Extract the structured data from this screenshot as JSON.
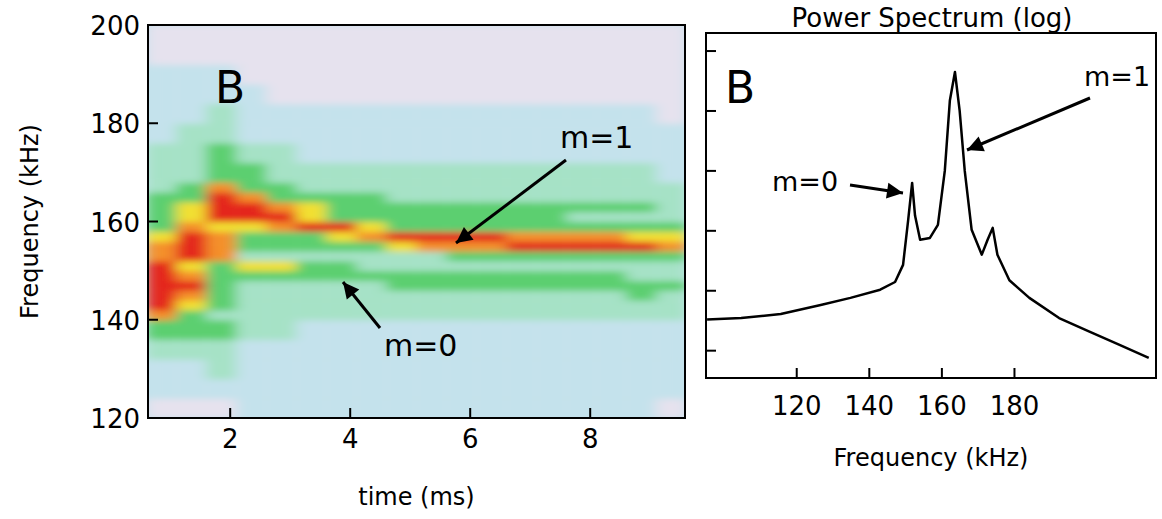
{
  "chart_data": [
    {
      "type": "heatmap",
      "panel_label": "B",
      "xlabel": "time (ms)",
      "ylabel": "Frequency (kHz)",
      "annotations": [
        "m=1",
        "m=0"
      ],
      "xlim": [
        0.63,
        9.58
      ],
      "ylim": [
        120,
        200
      ],
      "xticks": [
        2,
        4,
        6,
        8
      ],
      "yticks": [
        120,
        140,
        160,
        180,
        200
      ],
      "x_bins": [
        0.6,
        1.1,
        1.6,
        2.1,
        2.6,
        3.1,
        3.6,
        4.1,
        4.6,
        5.1,
        5.6,
        6.1,
        6.6,
        7.1,
        7.6,
        8.1,
        8.6,
        9.1,
        9.6
      ],
      "y_bins": [
        120,
        124,
        128,
        132,
        136,
        140,
        142,
        144,
        146,
        148,
        150,
        152,
        154,
        156,
        158,
        160,
        162,
        164,
        166,
        168,
        172,
        176,
        180,
        184,
        188,
        192,
        196,
        200
      ],
      "z": [
        [
          0,
          0,
          0,
          1,
          1,
          1,
          1,
          1,
          1,
          1,
          1,
          1,
          1,
          1,
          1,
          1,
          1,
          0
        ],
        [
          1,
          1,
          1,
          1,
          1,
          1,
          1,
          1,
          1,
          1,
          1,
          1,
          1,
          1,
          1,
          1,
          1,
          1
        ],
        [
          1,
          1,
          2,
          1,
          1,
          1,
          1,
          1,
          1,
          1,
          1,
          1,
          1,
          1,
          1,
          1,
          1,
          1
        ],
        [
          2,
          2,
          2,
          1,
          1,
          1,
          1,
          1,
          1,
          1,
          1,
          1,
          1,
          1,
          1,
          1,
          1,
          1
        ],
        [
          3,
          3,
          3,
          2,
          2,
          1,
          1,
          1,
          1,
          1,
          1,
          1,
          1,
          1,
          1,
          1,
          1,
          1
        ],
        [
          5,
          3,
          2,
          2,
          2,
          2,
          2,
          2,
          2,
          2,
          2,
          2,
          2,
          2,
          2,
          2,
          2,
          2
        ],
        [
          6,
          4,
          3,
          2,
          2,
          2,
          2,
          2,
          2,
          2,
          2,
          2,
          2,
          2,
          2,
          2,
          2,
          2
        ],
        [
          6,
          5,
          3,
          2,
          2,
          2,
          2,
          2,
          2,
          2,
          2,
          2,
          2,
          2,
          2,
          2,
          3,
          2
        ],
        [
          6,
          6,
          3,
          2,
          2,
          2,
          2,
          2,
          3,
          3,
          3,
          3,
          3,
          3,
          3,
          3,
          3,
          3
        ],
        [
          6,
          5,
          3,
          3,
          3,
          3,
          3,
          3,
          3,
          3,
          3,
          3,
          3,
          3,
          3,
          3,
          2,
          2
        ],
        [
          6,
          4,
          3,
          4,
          4,
          3,
          3,
          2,
          2,
          2,
          2,
          2,
          2,
          2,
          2,
          2,
          2,
          2
        ],
        [
          5,
          6,
          5,
          2,
          2,
          2,
          2,
          2,
          2,
          2,
          3,
          3,
          3,
          3,
          3,
          3,
          3,
          3
        ],
        [
          5,
          6,
          5,
          3,
          3,
          3,
          3,
          3,
          4,
          5,
          5,
          5,
          6,
          6,
          6,
          6,
          6,
          5
        ],
        [
          4,
          6,
          5,
          3,
          3,
          3,
          4,
          5,
          6,
          6,
          6,
          6,
          5,
          5,
          5,
          5,
          4,
          4
        ],
        [
          3,
          5,
          4,
          4,
          5,
          6,
          6,
          4,
          3,
          3,
          3,
          3,
          3,
          3,
          3,
          3,
          3,
          3
        ],
        [
          3,
          4,
          6,
          6,
          6,
          4,
          3,
          3,
          3,
          3,
          3,
          3,
          3,
          3,
          2,
          2,
          2,
          2
        ],
        [
          3,
          4,
          6,
          6,
          5,
          4,
          3,
          3,
          3,
          3,
          3,
          3,
          3,
          3,
          3,
          3,
          3,
          2
        ],
        [
          3,
          3,
          6,
          5,
          3,
          3,
          3,
          3,
          2,
          2,
          2,
          2,
          2,
          2,
          2,
          2,
          2,
          2
        ],
        [
          2,
          3,
          5,
          3,
          3,
          2,
          2,
          2,
          2,
          2,
          2,
          2,
          2,
          2,
          2,
          2,
          2,
          2
        ],
        [
          2,
          2,
          3,
          3,
          2,
          2,
          2,
          2,
          2,
          2,
          2,
          2,
          2,
          2,
          2,
          2,
          2,
          1
        ],
        [
          2,
          2,
          3,
          2,
          2,
          1,
          1,
          1,
          1,
          1,
          1,
          1,
          1,
          1,
          1,
          1,
          1,
          1
        ],
        [
          1,
          2,
          2,
          1,
          1,
          1,
          1,
          1,
          1,
          1,
          1,
          1,
          1,
          1,
          1,
          1,
          1,
          1
        ],
        [
          1,
          1,
          2,
          1,
          1,
          1,
          1,
          1,
          1,
          1,
          1,
          1,
          1,
          1,
          1,
          1,
          1,
          0
        ],
        [
          1,
          1,
          1,
          1,
          0,
          0,
          0,
          0,
          0,
          0,
          0,
          0,
          0,
          0,
          0,
          0,
          0,
          0
        ],
        [
          1,
          1,
          1,
          0,
          0,
          0,
          0,
          0,
          0,
          0,
          0,
          0,
          0,
          0,
          0,
          0,
          0,
          0
        ],
        [
          0,
          0,
          0,
          0,
          0,
          0,
          0,
          0,
          0,
          0,
          0,
          0,
          0,
          0,
          0,
          0,
          0,
          0
        ],
        [
          0,
          0,
          0,
          0,
          0,
          0,
          0,
          0,
          0,
          0,
          0,
          0,
          0,
          0,
          0,
          0,
          0,
          0
        ]
      ]
    },
    {
      "type": "line",
      "title": "Power Spectrum (log)",
      "panel_label": "B",
      "xlabel": "Frequency (kHz)",
      "annotations": [
        "m=0",
        "m=1"
      ],
      "log": "y",
      "tick_labels": "x",
      "color": "#000000",
      "xlim": [
        95,
        219
      ],
      "ylim": [
        0.35,
        200000
      ],
      "xticks": [
        120,
        140,
        160,
        180
      ],
      "yticks": [
        1,
        10,
        100,
        1000,
        10000,
        100000
      ],
      "x": [
        95.3,
        104.7,
        115.6,
        126.6,
        134.8,
        143.0,
        147.1,
        149.3,
        150.7,
        151.8,
        152.6,
        154.0,
        156.7,
        158.9,
        160.8,
        162.2,
        163.6,
        164.9,
        166.3,
        168.2,
        171.0,
        172.6,
        174.0,
        175.3,
        178.6,
        184.1,
        192.3,
        200.5,
        208.8,
        217.0
      ],
      "values": [
        3.3,
        3.5,
        4.1,
        5.8,
        7.6,
        10.4,
        14,
        27,
        150,
        630,
        180,
        71,
        76,
        126,
        1000,
        15000,
        44700,
        10000,
        1000,
        104,
        40,
        71,
        112,
        40,
        15,
        7.6,
        3.5,
        2.1,
        1.26,
        0.76
      ]
    }
  ]
}
